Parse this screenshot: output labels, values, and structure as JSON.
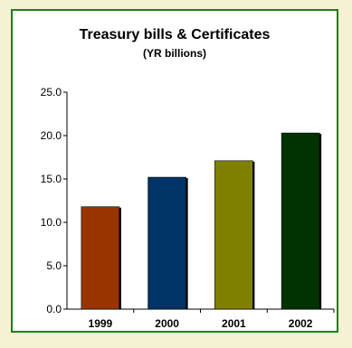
{
  "chart_data": {
    "type": "bar",
    "title": "Treasury bills & Certificates",
    "subtitle": "(YR billions)",
    "categories": [
      "1999",
      "2000",
      "2001",
      "2002"
    ],
    "values": [
      11.8,
      15.2,
      17.1,
      20.3
    ],
    "ylim": [
      0,
      25
    ],
    "yticks": [
      "0.0",
      "5.0",
      "10.0",
      "15.0",
      "20.0",
      "25.0"
    ],
    "bar_colors": [
      "#993300",
      "#003366",
      "#808000",
      "#003300"
    ],
    "grid": false,
    "legend": "none"
  },
  "colors": {
    "background": "#f5f3d3",
    "frame_border": "#1c7f1c",
    "plot_background": "#ffffff"
  }
}
